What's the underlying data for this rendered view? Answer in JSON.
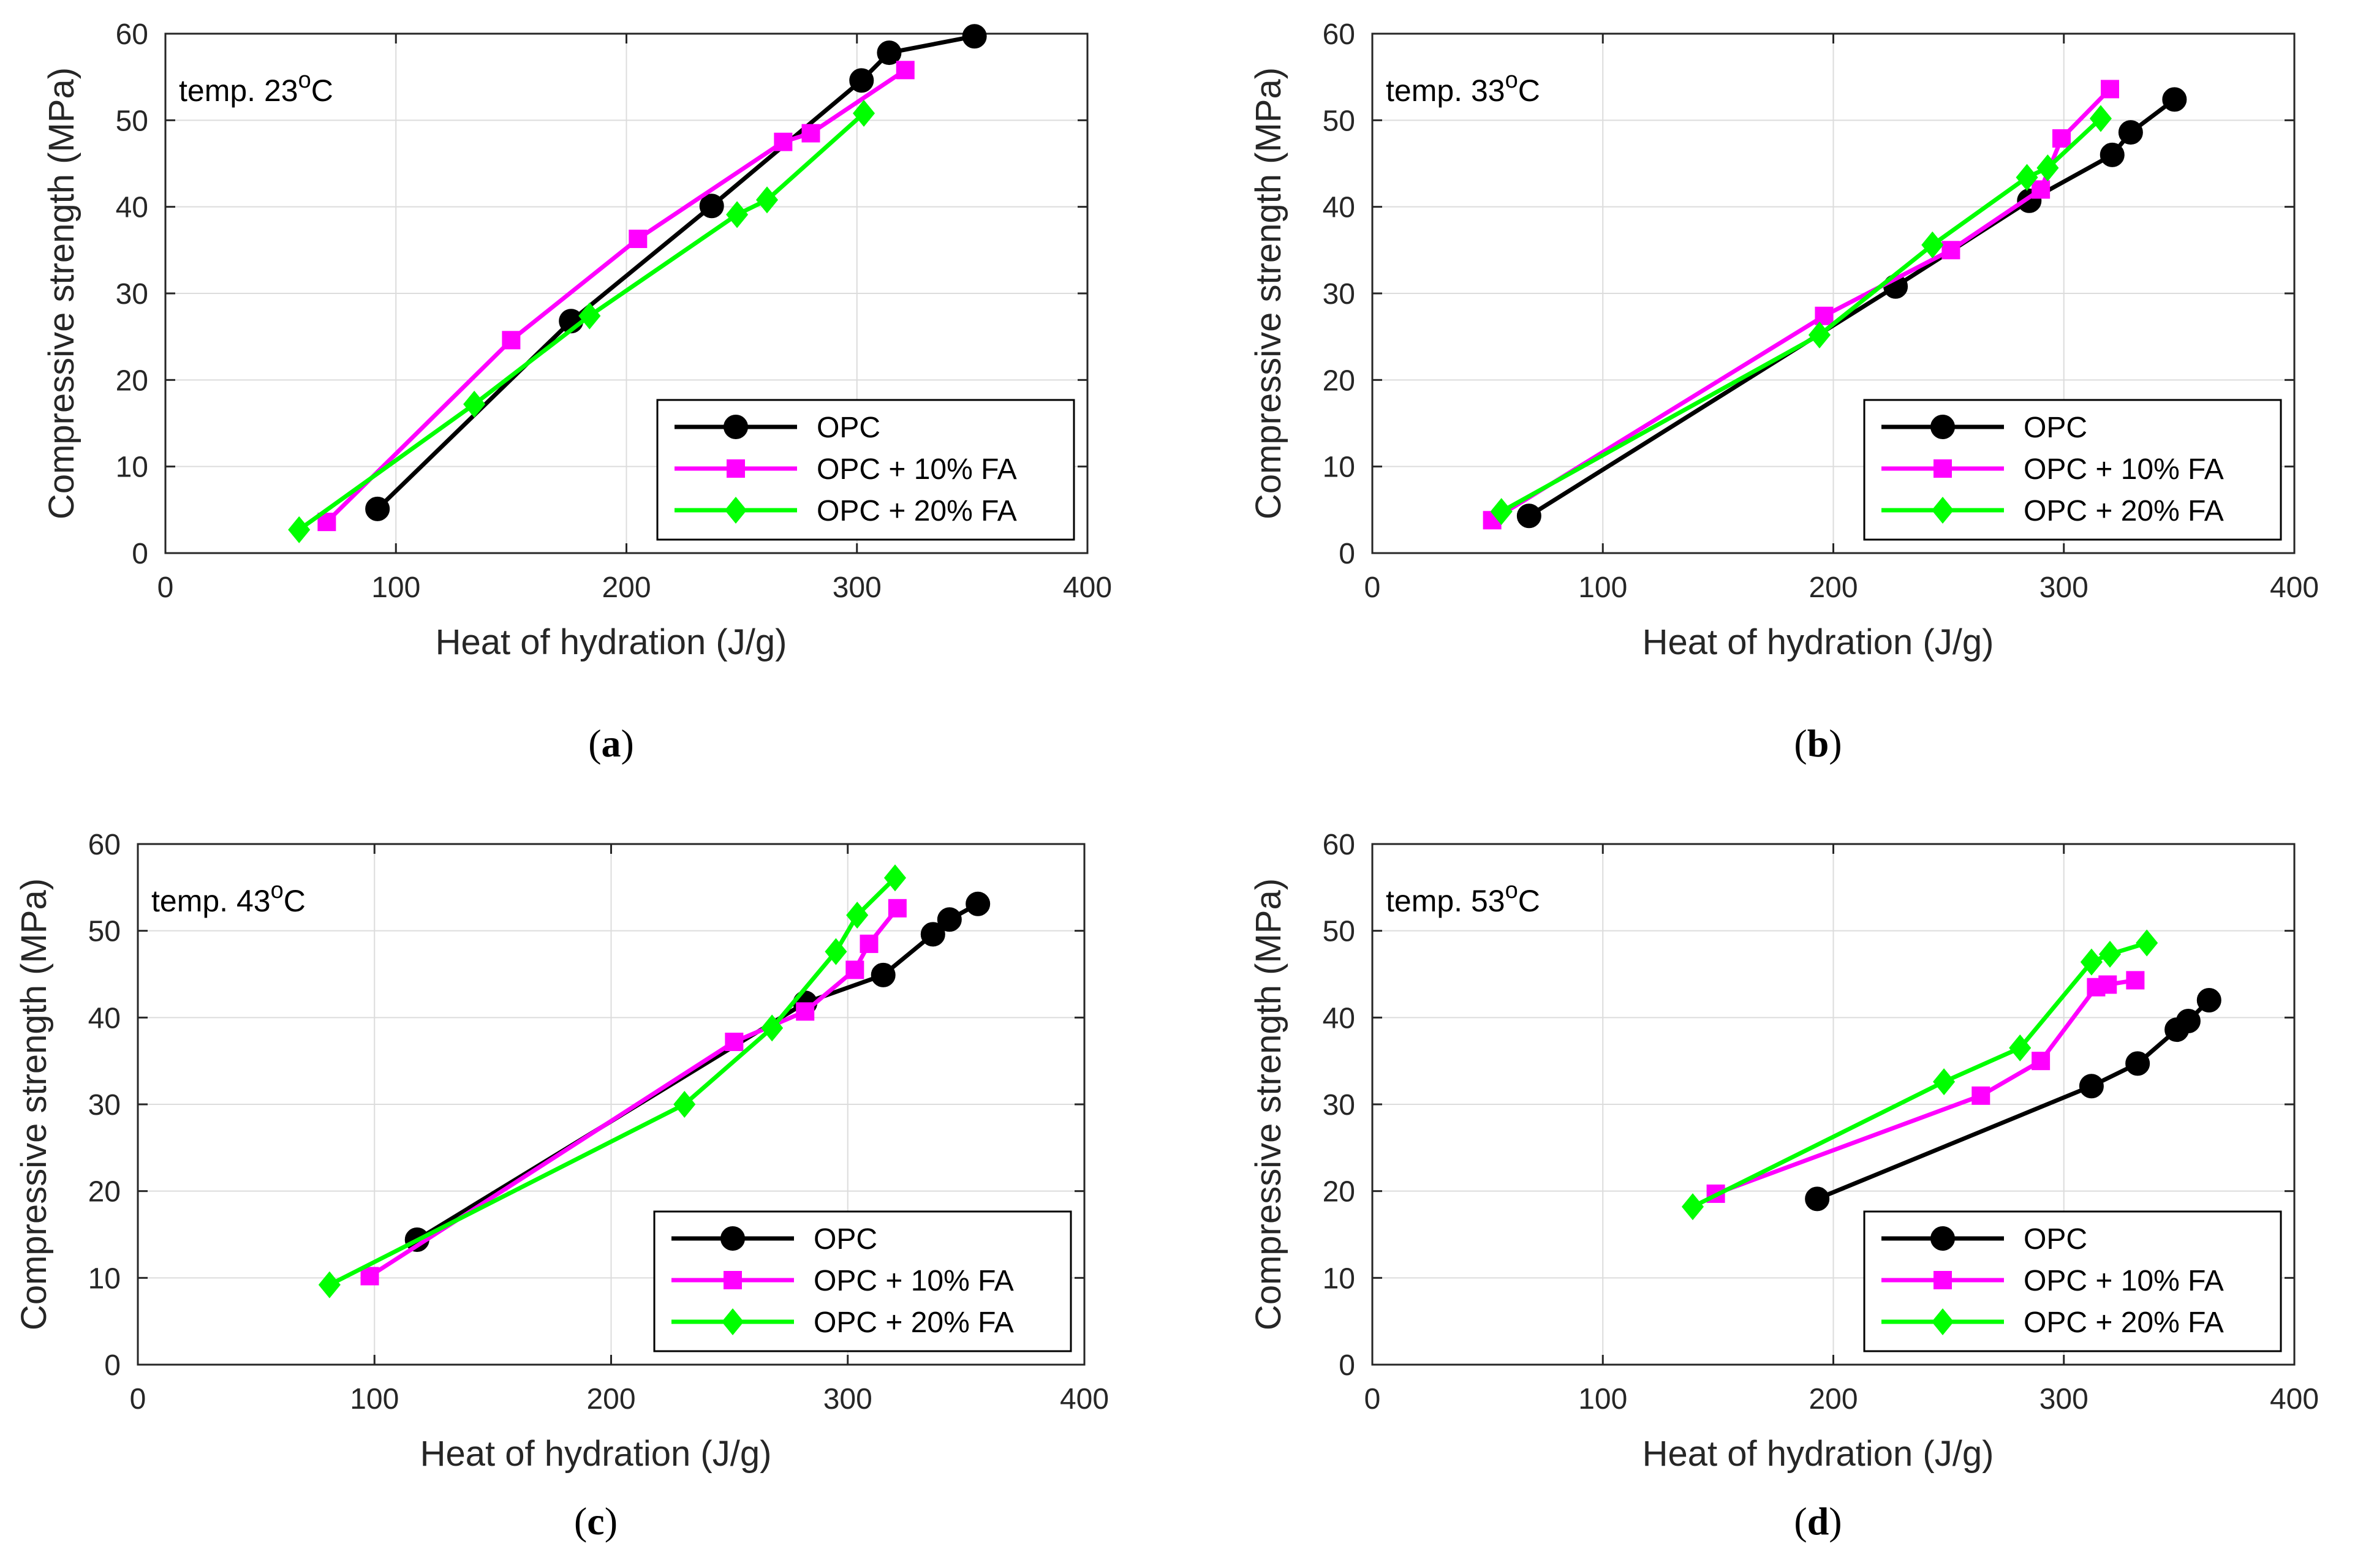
{
  "colors": {
    "opc": "#000000",
    "fa10": "#ff00ff",
    "fa20": "#00ff00",
    "grid": "#dcdcdc",
    "axis": "#262626"
  },
  "legend_entries": [
    "OPC",
    "OPC + 10% FA",
    "OPC + 20% FA"
  ],
  "chart_data": [
    {
      "type": "line",
      "panel": "a",
      "caption_letter": "a",
      "temperature_label": {
        "prefix": "temp. 23",
        "superscript": "o",
        "suffix": "C"
      },
      "xlabel": "Heat of hydration (J/g)",
      "ylabel": "Compressive strength (MPa)",
      "xlim": [
        0,
        400
      ],
      "ylim": [
        0,
        60
      ],
      "xticks": [
        0,
        100,
        200,
        300,
        400
      ],
      "yticks": [
        0,
        10,
        20,
        30,
        40,
        50,
        60
      ],
      "grid": true,
      "legend_position": "bottom-right",
      "series": [
        {
          "name": "OPC",
          "marker": "circle",
          "x": [
            92,
            176,
            237,
            302,
            314,
            351
          ],
          "y": [
            5.1,
            26.8,
            40.1,
            54.6,
            57.8,
            59.7
          ]
        },
        {
          "name": "OPC + 10% FA",
          "marker": "square",
          "x": [
            70,
            150,
            205,
            268,
            280,
            321
          ],
          "y": [
            3.6,
            24.6,
            36.3,
            47.5,
            48.5,
            55.8
          ]
        },
        {
          "name": "OPC + 20% FA",
          "marker": "diamond",
          "x": [
            58,
            134,
            184,
            248,
            261,
            303
          ],
          "y": [
            2.7,
            17.2,
            27.4,
            39.1,
            40.8,
            50.8
          ]
        }
      ]
    },
    {
      "type": "line",
      "panel": "b",
      "caption_letter": "b",
      "temperature_label": {
        "prefix": "temp. 33",
        "superscript": "o",
        "suffix": "C"
      },
      "xlabel": "Heat of hydration (J/g)",
      "ylabel": "Compressive strength (MPa)",
      "xlim": [
        0,
        400
      ],
      "ylim": [
        0,
        60
      ],
      "xticks": [
        0,
        100,
        200,
        300,
        400
      ],
      "yticks": [
        0,
        10,
        20,
        30,
        40,
        50,
        60
      ],
      "grid": true,
      "legend_position": "bottom-right",
      "series": [
        {
          "name": "OPC",
          "marker": "circle",
          "x": [
            68,
            227,
            285,
            321,
            329,
            348
          ],
          "y": [
            4.3,
            30.8,
            40.7,
            46.0,
            48.6,
            52.4
          ]
        },
        {
          "name": "OPC + 10% FA",
          "marker": "square",
          "x": [
            52,
            196,
            251,
            290,
            299,
            320
          ],
          "y": [
            3.8,
            27.4,
            35.0,
            42.0,
            47.9,
            53.6
          ]
        },
        {
          "name": "OPC + 20% FA",
          "marker": "diamond",
          "x": [
            56,
            194,
            243,
            284,
            293,
            316
          ],
          "y": [
            4.8,
            25.2,
            35.6,
            43.4,
            44.5,
            50.2
          ]
        }
      ]
    },
    {
      "type": "line",
      "panel": "c",
      "caption_letter": "c",
      "temperature_label": {
        "prefix": "temp. 43",
        "superscript": "o",
        "suffix": "C"
      },
      "xlabel": "Heat of hydration (J/g)",
      "ylabel": "Compressive strength (MPa)",
      "xlim": [
        0,
        400
      ],
      "ylim": [
        0,
        60
      ],
      "xticks": [
        0,
        100,
        200,
        300,
        400
      ],
      "yticks": [
        0,
        10,
        20,
        30,
        40,
        50,
        60
      ],
      "grid": true,
      "legend_position": "bottom-right",
      "series": [
        {
          "name": "OPC",
          "marker": "circle",
          "x": [
            118,
            282,
            315,
            336,
            343,
            355
          ],
          "y": [
            14.4,
            41.7,
            44.9,
            49.6,
            51.3,
            53.1
          ]
        },
        {
          "name": "OPC + 10% FA",
          "marker": "square",
          "x": [
            98,
            252,
            282,
            303,
            309,
            321
          ],
          "y": [
            10.2,
            37.2,
            40.7,
            45.5,
            48.5,
            52.6
          ]
        },
        {
          "name": "OPC + 20% FA",
          "marker": "diamond",
          "x": [
            81,
            231,
            268,
            295,
            304,
            320
          ],
          "y": [
            9.2,
            30.0,
            38.8,
            47.6,
            51.8,
            56.1
          ]
        }
      ]
    },
    {
      "type": "line",
      "panel": "d",
      "caption_letter": "d",
      "temperature_label": {
        "prefix": "temp. 53",
        "superscript": "o",
        "suffix": "C"
      },
      "xlabel": "Heat of hydration (J/g)",
      "ylabel": "Compressive strength (MPa)",
      "xlim": [
        0,
        400
      ],
      "ylim": [
        0,
        60
      ],
      "xticks": [
        0,
        100,
        200,
        300,
        400
      ],
      "yticks": [
        0,
        10,
        20,
        30,
        40,
        50,
        60
      ],
      "grid": true,
      "legend_position": "bottom-right",
      "series": [
        {
          "name": "OPC",
          "marker": "circle",
          "x": [
            193,
            312,
            332,
            349,
            354,
            363
          ],
          "y": [
            19.1,
            32.1,
            34.7,
            38.6,
            39.6,
            42.0
          ]
        },
        {
          "name": "OPC + 10% FA",
          "marker": "square",
          "x": [
            149,
            264,
            290,
            314,
            319,
            331
          ],
          "y": [
            19.7,
            31.0,
            35.0,
            43.5,
            43.8,
            44.3
          ]
        },
        {
          "name": "OPC + 20% FA",
          "marker": "diamond",
          "x": [
            139,
            248,
            281,
            312,
            320,
            336
          ],
          "y": [
            18.2,
            32.6,
            36.5,
            46.4,
            47.3,
            48.6
          ]
        }
      ]
    }
  ]
}
